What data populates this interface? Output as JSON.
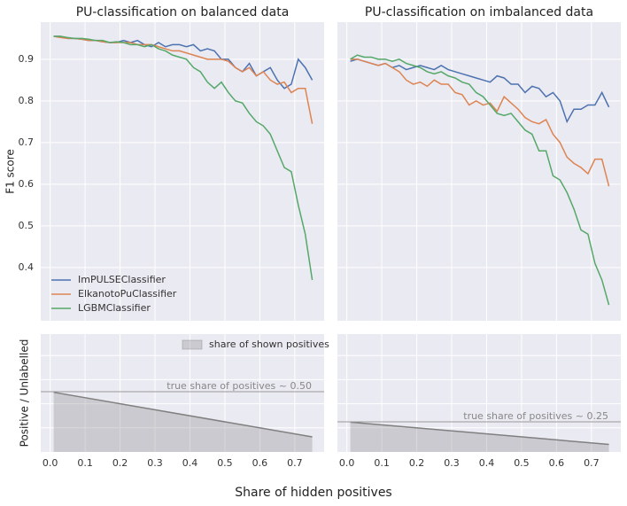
{
  "figure": {
    "xlabel": "Share of hidden positives"
  },
  "chart_data": [
    {
      "type": "line",
      "title": "PU-classification on balanced data",
      "ylabel": "F1 score",
      "x": [
        0.01,
        0.03,
        0.05,
        0.07,
        0.09,
        0.11,
        0.13,
        0.15,
        0.17,
        0.19,
        0.21,
        0.23,
        0.25,
        0.27,
        0.29,
        0.31,
        0.33,
        0.35,
        0.37,
        0.39,
        0.41,
        0.43,
        0.45,
        0.47,
        0.49,
        0.51,
        0.53,
        0.55,
        0.57,
        0.59,
        0.61,
        0.63,
        0.65,
        0.67,
        0.69,
        0.71,
        0.73,
        0.75
      ],
      "xlim": [
        -0.027,
        0.784
      ],
      "xticks": [
        0,
        0.1,
        0.2,
        0.3,
        0.4,
        0.5,
        0.6,
        0.7
      ],
      "ylim": [
        0.272,
        0.989
      ],
      "yticks": [
        0.4,
        0.5,
        0.6,
        0.7,
        0.8,
        0.9
      ],
      "grid": true,
      "legend": "lower left",
      "series": [
        {
          "name": "ImPULSEClassifier",
          "color": "#4c72b0",
          "values": [
            0.955,
            0.955,
            0.95,
            0.95,
            0.948,
            0.945,
            0.945,
            0.942,
            0.94,
            0.94,
            0.945,
            0.94,
            0.945,
            0.935,
            0.93,
            0.94,
            0.93,
            0.935,
            0.935,
            0.93,
            0.935,
            0.92,
            0.925,
            0.92,
            0.9,
            0.9,
            0.88,
            0.87,
            0.89,
            0.86,
            0.87,
            0.88,
            0.85,
            0.83,
            0.84,
            0.9,
            0.88,
            0.85
          ]
        },
        {
          "name": "ElkanotoPuClassifier",
          "color": "#dd8452",
          "values": [
            0.955,
            0.952,
            0.95,
            0.95,
            0.948,
            0.945,
            0.945,
            0.942,
            0.94,
            0.94,
            0.94,
            0.94,
            0.935,
            0.935,
            0.935,
            0.93,
            0.925,
            0.92,
            0.92,
            0.915,
            0.91,
            0.905,
            0.9,
            0.9,
            0.9,
            0.895,
            0.88,
            0.87,
            0.88,
            0.86,
            0.87,
            0.85,
            0.84,
            0.845,
            0.82,
            0.83,
            0.83,
            0.745
          ]
        },
        {
          "name": "LGBMClassifier",
          "color": "#55a868",
          "values": [
            0.955,
            0.955,
            0.952,
            0.95,
            0.95,
            0.948,
            0.945,
            0.945,
            0.94,
            0.942,
            0.94,
            0.935,
            0.935,
            0.93,
            0.935,
            0.925,
            0.92,
            0.91,
            0.905,
            0.9,
            0.88,
            0.87,
            0.845,
            0.83,
            0.845,
            0.82,
            0.8,
            0.795,
            0.77,
            0.75,
            0.74,
            0.72,
            0.68,
            0.64,
            0.63,
            0.55,
            0.48,
            0.37
          ]
        }
      ]
    },
    {
      "type": "line",
      "title": "PU-classification on imbalanced data",
      "x": [
        0.01,
        0.03,
        0.05,
        0.07,
        0.09,
        0.11,
        0.13,
        0.15,
        0.17,
        0.19,
        0.21,
        0.23,
        0.25,
        0.27,
        0.29,
        0.31,
        0.33,
        0.35,
        0.37,
        0.39,
        0.41,
        0.43,
        0.45,
        0.47,
        0.49,
        0.51,
        0.53,
        0.55,
        0.57,
        0.59,
        0.61,
        0.63,
        0.65,
        0.67,
        0.69,
        0.71,
        0.73,
        0.75
      ],
      "xlim": [
        -0.027,
        0.784
      ],
      "xticks": [
        0,
        0.1,
        0.2,
        0.3,
        0.4,
        0.5,
        0.6,
        0.7
      ],
      "ylim": [
        0.272,
        0.989
      ],
      "yticks": [
        0.4,
        0.5,
        0.6,
        0.7,
        0.8,
        0.9
      ],
      "grid": true,
      "series": [
        {
          "color": "#4c72b0",
          "values": [
            0.895,
            0.9,
            0.895,
            0.89,
            0.885,
            0.89,
            0.88,
            0.885,
            0.875,
            0.88,
            0.885,
            0.88,
            0.875,
            0.885,
            0.875,
            0.87,
            0.865,
            0.86,
            0.855,
            0.85,
            0.845,
            0.86,
            0.855,
            0.84,
            0.84,
            0.82,
            0.835,
            0.83,
            0.81,
            0.82,
            0.8,
            0.75,
            0.78,
            0.78,
            0.79,
            0.79,
            0.82,
            0.785
          ]
        },
        {
          "color": "#dd8452",
          "values": [
            0.9,
            0.9,
            0.895,
            0.89,
            0.885,
            0.89,
            0.88,
            0.87,
            0.85,
            0.84,
            0.845,
            0.835,
            0.85,
            0.84,
            0.84,
            0.82,
            0.815,
            0.79,
            0.8,
            0.79,
            0.795,
            0.775,
            0.81,
            0.795,
            0.78,
            0.76,
            0.75,
            0.745,
            0.755,
            0.72,
            0.7,
            0.665,
            0.65,
            0.64,
            0.625,
            0.66,
            0.66,
            0.595
          ]
        },
        {
          "color": "#55a868",
          "values": [
            0.9,
            0.91,
            0.905,
            0.905,
            0.9,
            0.9,
            0.895,
            0.9,
            0.89,
            0.885,
            0.88,
            0.87,
            0.865,
            0.87,
            0.86,
            0.855,
            0.845,
            0.84,
            0.82,
            0.81,
            0.79,
            0.77,
            0.765,
            0.77,
            0.75,
            0.73,
            0.72,
            0.68,
            0.68,
            0.62,
            0.61,
            0.58,
            0.54,
            0.49,
            0.48,
            0.41,
            0.37,
            0.31
          ]
        }
      ]
    },
    {
      "type": "area",
      "ylabel": "Positive / Unlabelled",
      "x": [
        0.01,
        0.75
      ],
      "xlim": [
        -0.027,
        0.784
      ],
      "xticks": [
        {
          "value": 0,
          "label": "0.0"
        },
        0.1,
        0.2,
        0.3,
        0.4,
        0.5,
        0.6,
        0.7
      ],
      "ylim": [
        0,
        0.978
      ],
      "yticks": [
        0.2,
        0.4,
        0.6,
        0.8
      ],
      "grid": true,
      "legend": "upper right",
      "series": [
        {
          "name": "share of shown positives",
          "color": "#808080",
          "values": [
            0.495,
            0.125
          ]
        }
      ],
      "annotations": [
        {
          "text": "true share of positives ~ 0.50",
          "y": 0.5
        }
      ]
    },
    {
      "type": "area",
      "x": [
        0.01,
        0.75
      ],
      "xlim": [
        -0.027,
        0.784
      ],
      "xticks": [
        {
          "value": 0,
          "label": "0.0"
        },
        0.1,
        0.2,
        0.3,
        0.4,
        0.5,
        0.6,
        0.7
      ],
      "ylim": [
        0,
        0.978
      ],
      "yticks": [
        0.2,
        0.4,
        0.6,
        0.8
      ],
      "grid": true,
      "series": [
        {
          "color": "#808080",
          "values": [
            0.2475,
            0.0625
          ]
        }
      ],
      "annotations": [
        {
          "text": "true share of positives ~ 0.25",
          "y": 0.25
        }
      ]
    }
  ]
}
